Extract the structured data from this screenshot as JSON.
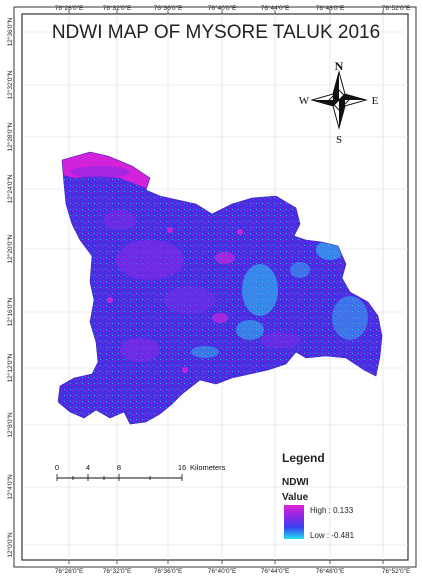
{
  "title": "NDWI MAP OF MYSORE TALUK 2016",
  "longitude_labels": [
    "76°28'0\"E",
    "76°32'0\"E",
    "76°36'0\"E",
    "76°40'0\"E",
    "76°44'0\"E",
    "76°48'0\"E",
    "76°52'0\"E"
  ],
  "latitude_labels": [
    "12°36'0\"N",
    "12°32'0\"N",
    "12°28'0\"N",
    "12°24'0\"N",
    "12°20'0\"N",
    "12°16'0\"N",
    "12°12'0\"N",
    "12°8'0\"N",
    "12°4'0\"N",
    "12°0'0\"N"
  ],
  "north_arrow": {
    "n": "N",
    "s": "S",
    "e": "E",
    "w": "W"
  },
  "scale_bar": {
    "ticks": [
      "0",
      "4",
      "8",
      "16"
    ],
    "unit": "Kilometers"
  },
  "legend": {
    "heading": "Legend",
    "layer": "NDWI",
    "field": "Value",
    "high_label": "High : 0.133",
    "low_label": "Low : -0.481",
    "high_color": "#e020d8",
    "low_color": "#22e0f0"
  },
  "colors": {
    "ndwi_main": "#4a2ce0",
    "ndwi_purple": "#8a28e6",
    "ndwi_cyan": "#2ad0f0",
    "frame": "#333333",
    "grid": "#d9d9d9"
  }
}
